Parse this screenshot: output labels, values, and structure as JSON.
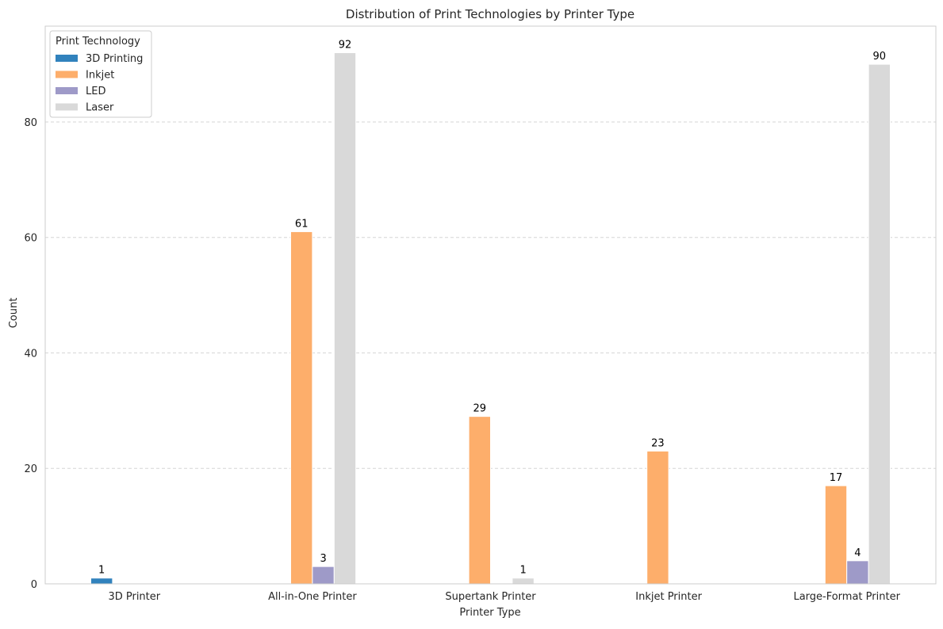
{
  "chart_data": {
    "type": "bar",
    "title": "Distribution of Print Technologies by Printer Type",
    "xlabel": "Printer Type",
    "ylabel": "Count",
    "ylim": [
      0,
      96.6
    ],
    "yticks": [
      0,
      20,
      40,
      60,
      80
    ],
    "grid": true,
    "legend_title": "Print Technology",
    "legend_position": "top-left",
    "categories": [
      "3D Printer",
      "All-in-One Printer",
      "Supertank Printer",
      "Inkjet Printer",
      "Large-Format Printer"
    ],
    "series": [
      {
        "name": "3D Printing",
        "color": "#3182bd",
        "values": [
          1,
          0,
          0,
          0,
          0
        ]
      },
      {
        "name": "Inkjet",
        "color": "#fdae6b",
        "values": [
          0,
          61,
          29,
          23,
          17
        ]
      },
      {
        "name": "LED",
        "color": "#9e9ac8",
        "values": [
          0,
          3,
          0,
          0,
          4
        ]
      },
      {
        "name": "Laser",
        "color": "#d9d9d9",
        "values": [
          0,
          92,
          1,
          0,
          90
        ]
      }
    ]
  }
}
